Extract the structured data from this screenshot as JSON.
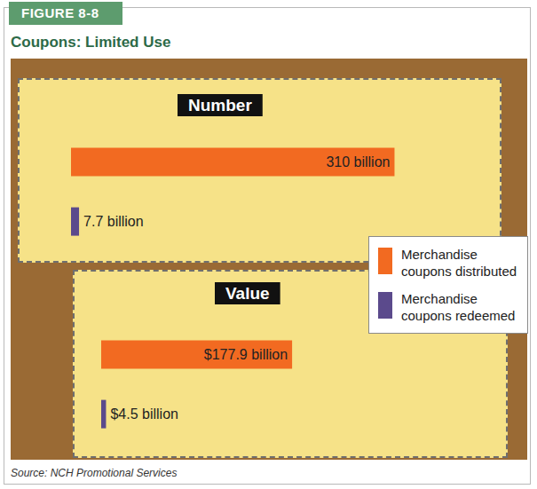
{
  "figure": {
    "label": "FIGURE 8-8",
    "title": "Coupons: Limited Use",
    "source": "Source: NCH Promotional Services",
    "legend": "right"
  },
  "chart_data": [
    {
      "type": "bar",
      "title": "Number",
      "orientation": "horizontal",
      "categories": [
        null
      ],
      "xlim": [
        0,
        370
      ],
      "tick_labels": false,
      "grid": false,
      "data_labels": true,
      "series": [
        {
          "name": "Merchandise coupons distributed",
          "color": "#f26a21",
          "values": [
            310
          ],
          "value_labels": [
            "310 billion"
          ]
        },
        {
          "name": "Merchandise coupons redeemed",
          "color": "#5b4a8c",
          "values": [
            7.7
          ],
          "value_labels": [
            "7.7 billion"
          ]
        }
      ]
    },
    {
      "type": "bar",
      "title": "Value",
      "orientation": "horizontal",
      "categories": [
        null
      ],
      "xlim": [
        0,
        220
      ],
      "tick_labels": false,
      "grid": false,
      "data_labels": true,
      "series": [
        {
          "name": "Merchandise coupons distributed",
          "color": "#f26a21",
          "values": [
            177.9
          ],
          "value_labels": [
            "$177.9 billion"
          ]
        },
        {
          "name": "Merchandise coupons redeemed",
          "color": "#5b4a8c",
          "values": [
            4.5
          ],
          "value_labels": [
            "$4.5 billion"
          ]
        }
      ]
    }
  ]
}
